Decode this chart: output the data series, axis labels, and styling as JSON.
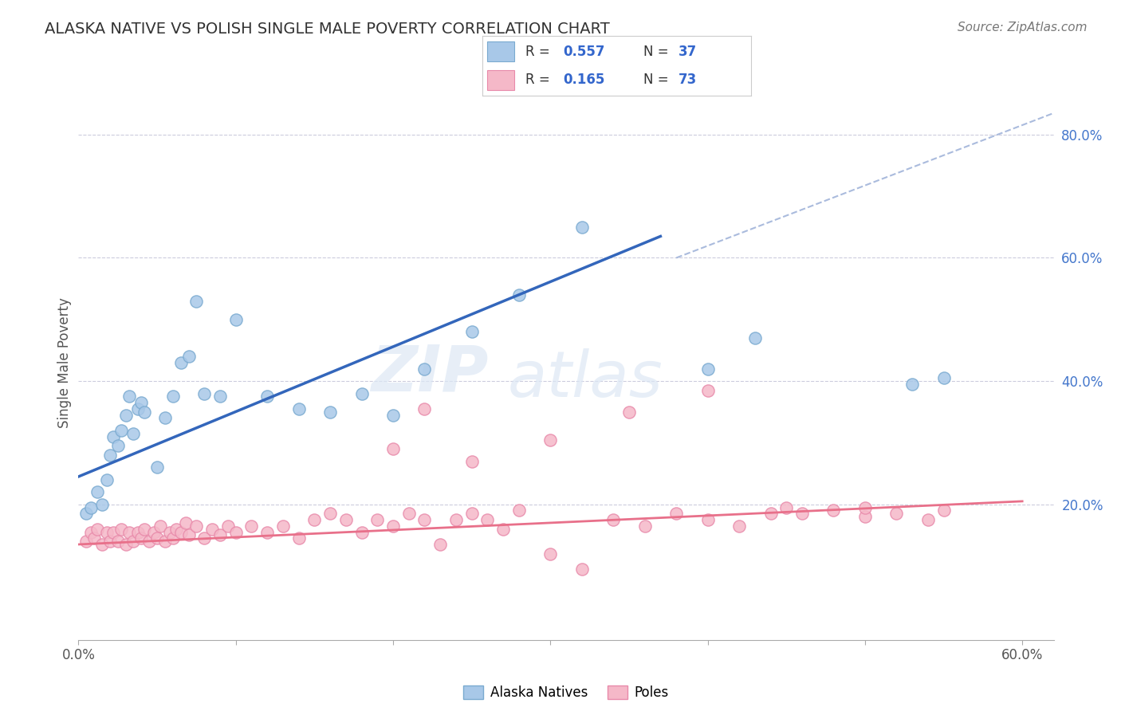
{
  "title": "ALASKA NATIVE VS POLISH SINGLE MALE POVERTY CORRELATION CHART",
  "source": "Source: ZipAtlas.com",
  "ylabel": "Single Male Poverty",
  "watermark": "ZIPatlas",
  "xlim": [
    0.0,
    0.62
  ],
  "ylim": [
    -0.02,
    0.88
  ],
  "y_tick_positions_right": [
    0.2,
    0.4,
    0.6,
    0.8
  ],
  "y_tick_labels_right": [
    "20.0%",
    "40.0%",
    "60.0%",
    "80.0%"
  ],
  "alaska_color": "#a8c8e8",
  "alaska_edge": "#7aaad0",
  "alaska_line_color": "#3366bb",
  "polish_color": "#f5b8c8",
  "polish_edge": "#e88aaa",
  "polish_line_color": "#e8708a",
  "diag_line_color": "#aabbdd",
  "alaska_line_x": [
    0.0,
    0.37
  ],
  "alaska_line_y": [
    0.245,
    0.635
  ],
  "polish_line_x": [
    0.0,
    0.6
  ],
  "polish_line_y": [
    0.135,
    0.205
  ],
  "diag_line_x": [
    0.38,
    0.62
  ],
  "diag_line_y": [
    0.6,
    0.835
  ],
  "alaska_points_x": [
    0.005,
    0.008,
    0.012,
    0.015,
    0.018,
    0.02,
    0.022,
    0.025,
    0.027,
    0.03,
    0.032,
    0.035,
    0.038,
    0.04,
    0.042,
    0.05,
    0.055,
    0.06,
    0.065,
    0.07,
    0.075,
    0.08,
    0.09,
    0.1,
    0.12,
    0.14,
    0.16,
    0.18,
    0.2,
    0.22,
    0.25,
    0.28,
    0.32,
    0.4,
    0.43,
    0.53,
    0.55
  ],
  "alaska_points_y": [
    0.185,
    0.195,
    0.22,
    0.2,
    0.24,
    0.28,
    0.31,
    0.295,
    0.32,
    0.345,
    0.375,
    0.315,
    0.355,
    0.365,
    0.35,
    0.26,
    0.34,
    0.375,
    0.43,
    0.44,
    0.53,
    0.38,
    0.375,
    0.5,
    0.375,
    0.355,
    0.35,
    0.38,
    0.345,
    0.42,
    0.48,
    0.54,
    0.65,
    0.42,
    0.47,
    0.395,
    0.405
  ],
  "polish_points_x": [
    0.005,
    0.008,
    0.01,
    0.012,
    0.015,
    0.018,
    0.02,
    0.022,
    0.025,
    0.027,
    0.03,
    0.032,
    0.035,
    0.038,
    0.04,
    0.042,
    0.045,
    0.048,
    0.05,
    0.052,
    0.055,
    0.058,
    0.06,
    0.062,
    0.065,
    0.068,
    0.07,
    0.075,
    0.08,
    0.085,
    0.09,
    0.095,
    0.1,
    0.11,
    0.12,
    0.13,
    0.14,
    0.15,
    0.16,
    0.17,
    0.18,
    0.19,
    0.2,
    0.21,
    0.22,
    0.23,
    0.24,
    0.25,
    0.26,
    0.27,
    0.28,
    0.3,
    0.32,
    0.34,
    0.36,
    0.38,
    0.4,
    0.42,
    0.44,
    0.46,
    0.48,
    0.5,
    0.52,
    0.54,
    0.2,
    0.22,
    0.25,
    0.3,
    0.35,
    0.4,
    0.45,
    0.5,
    0.55
  ],
  "polish_points_y": [
    0.14,
    0.155,
    0.145,
    0.16,
    0.135,
    0.155,
    0.14,
    0.155,
    0.14,
    0.16,
    0.135,
    0.155,
    0.14,
    0.155,
    0.145,
    0.16,
    0.14,
    0.155,
    0.145,
    0.165,
    0.14,
    0.155,
    0.145,
    0.16,
    0.155,
    0.17,
    0.15,
    0.165,
    0.145,
    0.16,
    0.15,
    0.165,
    0.155,
    0.165,
    0.155,
    0.165,
    0.145,
    0.175,
    0.185,
    0.175,
    0.155,
    0.175,
    0.165,
    0.185,
    0.175,
    0.135,
    0.175,
    0.185,
    0.175,
    0.16,
    0.19,
    0.12,
    0.095,
    0.175,
    0.165,
    0.185,
    0.175,
    0.165,
    0.185,
    0.185,
    0.19,
    0.18,
    0.185,
    0.175,
    0.29,
    0.355,
    0.27,
    0.305,
    0.35,
    0.385,
    0.195,
    0.195,
    0.19
  ]
}
